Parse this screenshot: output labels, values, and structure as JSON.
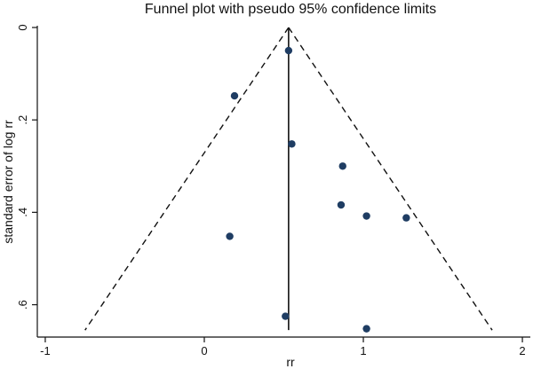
{
  "chart_data": {
    "type": "scatter",
    "title": "Funnel plot with pseudo 95% confidence limits",
    "xlabel": "rr",
    "ylabel": "standard error of log rr",
    "xlim": [
      -1.05,
      2.05
    ],
    "ylim": [
      0,
      0.67
    ],
    "y_reversed": true,
    "x_ticks": [
      -1,
      0,
      1,
      2
    ],
    "x_tick_labels": [
      "-1",
      "0",
      "1",
      "2"
    ],
    "y_ticks": [
      0,
      0.2,
      0.4,
      0.6
    ],
    "y_tick_labels": [
      "0",
      ".2",
      ".4",
      ".6"
    ],
    "pooled_estimate": 0.53,
    "confidence_limits": {
      "apex": [
        0.53,
        0.0
      ],
      "lower_base": [
        -0.75,
        0.655
      ],
      "upper_base": [
        1.81,
        0.655
      ]
    },
    "points": [
      {
        "x": 0.53,
        "y": 0.05
      },
      {
        "x": 0.19,
        "y": 0.148
      },
      {
        "x": 0.55,
        "y": 0.252
      },
      {
        "x": 0.87,
        "y": 0.3
      },
      {
        "x": 0.86,
        "y": 0.384
      },
      {
        "x": 1.02,
        "y": 0.408
      },
      {
        "x": 1.27,
        "y": 0.412
      },
      {
        "x": 0.16,
        "y": 0.452
      },
      {
        "x": 0.51,
        "y": 0.625
      },
      {
        "x": 1.02,
        "y": 0.652
      }
    ],
    "marker_color": "#1f3d63",
    "line_color": "#111111"
  }
}
